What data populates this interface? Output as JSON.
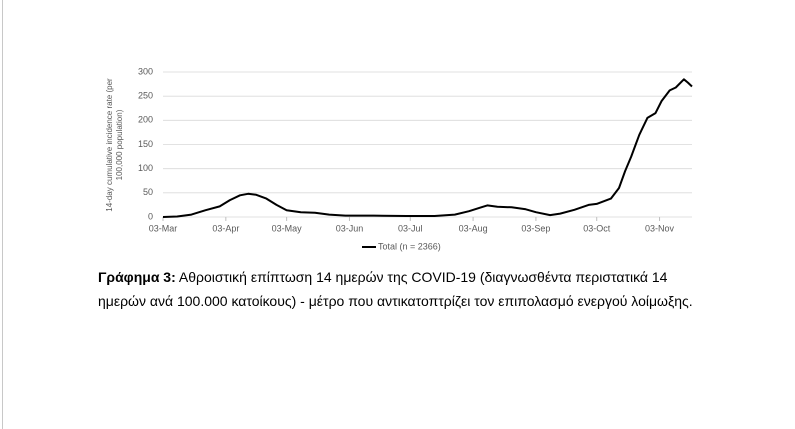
{
  "chart_data": {
    "type": "line",
    "ylabel": "14-day cumulative incidence rate (per 100,000 population)",
    "x": [
      "03-Mar",
      "10-Mar",
      "17-Mar",
      "24-Mar",
      "31-Mar",
      "05-Apr",
      "10-Apr",
      "14-Apr",
      "18-Apr",
      "23-Apr",
      "28-Apr",
      "03-May",
      "10-May",
      "17-May",
      "24-May",
      "01-Jun",
      "15-Jun",
      "01-Jul",
      "15-Jul",
      "25-Jul",
      "01-Aug",
      "07-Aug",
      "10-Aug",
      "15-Aug",
      "22-Aug",
      "29-Aug",
      "03-Sep",
      "10-Sep",
      "15-Sep",
      "22-Sep",
      "29-Sep",
      "03-Oct",
      "10-Oct",
      "14-Oct",
      "17-Oct",
      "20-Oct",
      "24-Oct",
      "28-Oct",
      "01-Nov",
      "04-Nov",
      "08-Nov",
      "11-Nov",
      "15-Nov",
      "17-Nov",
      "19-Nov"
    ],
    "series": [
      {
        "name": "Total (n = 2366)",
        "color": "#000000",
        "values": [
          0,
          1,
          5,
          14,
          22,
          35,
          45,
          48,
          46,
          38,
          25,
          14,
          10,
          9,
          5,
          3,
          3,
          2,
          2,
          5,
          12,
          20,
          24,
          21,
          20,
          16,
          10,
          4,
          7,
          15,
          25,
          27,
          38,
          60,
          95,
          125,
          170,
          205,
          215,
          240,
          262,
          268,
          285,
          278,
          270
        ]
      }
    ],
    "xticks": [
      "03-Mar",
      "03-Apr",
      "03-May",
      "03-Jun",
      "03-Jul",
      "03-Aug",
      "03-Sep",
      "03-Oct",
      "03-Nov"
    ],
    "xlim": [
      "03-Mar",
      "20-Nov"
    ],
    "ylim": [
      0,
      300
    ],
    "yticks": [
      0,
      50,
      100,
      150,
      200,
      250,
      300
    ],
    "grid": true,
    "legend": "bottom"
  },
  "caption": {
    "label": "Γράφημα 3:",
    "text": " Αθροιστική επίπτωση 14 ημερών της COVID-19 (διαγνωσθέντα περιστατικά 14 ημερών ανά 100.000 κατοίκους) - μέτρο που αντικατοπτρίζει τον επιπολασμό ενεργού λοίμωξης."
  }
}
